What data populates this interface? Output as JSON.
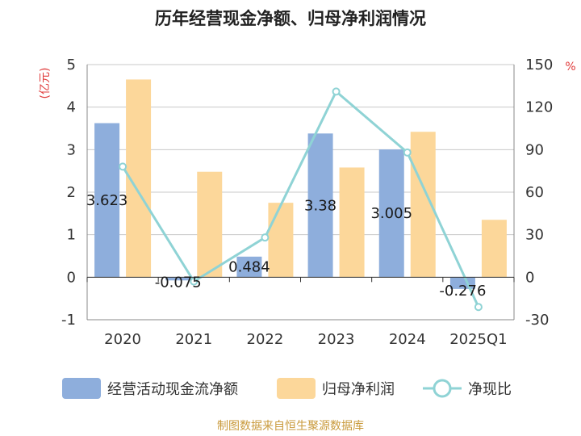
{
  "title": "历年经营现金净额、归母净利润情况",
  "source": "制图数据来自恒生聚源数据库",
  "chart_data": {
    "type": "bar",
    "categories": [
      "2020",
      "2021",
      "2022",
      "2023",
      "2024",
      "2025Q1"
    ],
    "series": [
      {
        "name": "经营活动现金流净额",
        "type": "bar",
        "axis": "left",
        "color": "#8eaedc",
        "values": [
          3.623,
          -0.075,
          0.484,
          3.38,
          3.005,
          -0.276
        ],
        "labels": [
          "3.623",
          "-0.075",
          "0.484",
          "3.38",
          "3.005",
          "-0.276"
        ]
      },
      {
        "name": "归母净利润",
        "type": "bar",
        "axis": "left",
        "color": "#fcd79a",
        "values": [
          4.65,
          2.48,
          1.75,
          2.58,
          3.42,
          1.35
        ]
      },
      {
        "name": "净现比",
        "type": "line",
        "axis": "right",
        "color": "#8fd3d5",
        "values": [
          78,
          -3,
          28,
          131,
          88,
          -21
        ]
      }
    ],
    "left_axis": {
      "unit": "(亿元)",
      "ylim": [
        -1,
        5
      ],
      "ticks": [
        "5",
        "4",
        "3",
        "2",
        "1",
        "0",
        "-1"
      ]
    },
    "right_axis": {
      "unit": "%",
      "ylim": [
        -30,
        150
      ],
      "ticks": [
        "150",
        "120",
        "90",
        "60",
        "30",
        "0",
        "-30"
      ]
    },
    "grid": true,
    "legend_position": "bottom"
  }
}
